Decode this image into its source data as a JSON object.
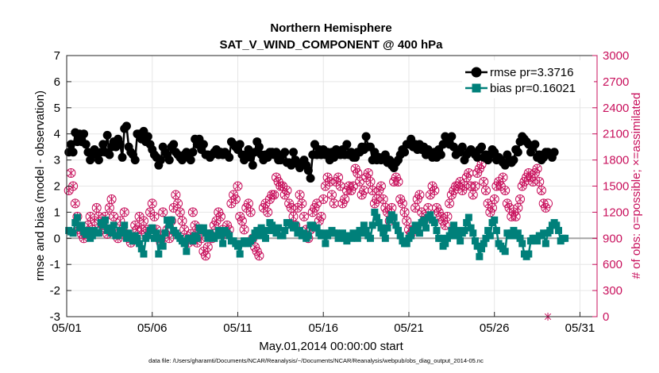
{
  "chart_data": {
    "type": "line",
    "title": "Northern Hemisphere",
    "subtitle": "SAT_V_WIND_COMPONENT @ 400 hPa",
    "xlabel": "May.01,2014 00:00:00 start",
    "ylabel": "rmse and bias (model - observation)",
    "y2label": "# of obs: o=possible; ×=assimilated",
    "footer": "data file: /Users/gharamti/Documents/NCAR/Reanalysis/~/Documents/NCAR/Reanalysis/webpub/obs_diag_output_2014-05.nc",
    "xlim": [
      0,
      31
    ],
    "ylim": [
      -3,
      7
    ],
    "y2lim": [
      0,
      3000
    ],
    "xtick_values": [
      0,
      5,
      10,
      15,
      20,
      25,
      30
    ],
    "xtick_labels": [
      "05/01",
      "05/06",
      "05/11",
      "05/16",
      "05/21",
      "05/26",
      "05/31"
    ],
    "ytick_labels": [
      "-3",
      "-2",
      "-1",
      "0",
      "1",
      "2",
      "3",
      "4",
      "5",
      "6",
      "7"
    ],
    "y2tick_labels": [
      "0",
      "300",
      "600",
      "900",
      "1200",
      "1500",
      "1800",
      "2100",
      "2400",
      "2700",
      "3000"
    ],
    "reference_line": 0,
    "colors": {
      "rmse": "#000000",
      "bias": "#00807a",
      "obs": "#c8105c",
      "zero": "#a6a6a6"
    },
    "x_start": 0.125,
    "x_step": 0.125,
    "series": [
      {
        "name": "rmse pr=3.3716",
        "marker": "circle",
        "values": [
          3.3,
          3.6,
          3.3,
          4.05,
          3.7,
          4.0,
          3.7,
          4.0,
          3.6,
          3.3,
          3.0,
          3.2,
          3.4,
          3.2,
          3.0,
          3.3,
          3.6,
          3.3,
          3.95,
          3.2,
          3.5,
          3.7,
          3.5,
          3.8,
          3.6,
          3.1,
          4.2,
          4.3,
          3.5,
          3.3,
          3.2,
          3.0,
          4.0,
          4.0,
          3.8,
          4.1,
          3.7,
          3.9,
          3.6,
          3.4,
          3.2,
          3.1,
          2.8,
          3.0,
          3.5,
          3.3,
          3.2,
          3.0,
          3.5,
          3.6,
          3.3,
          3.2,
          3.1,
          3.0,
          3.2,
          3.3,
          3.1,
          3.0,
          3.3,
          3.8,
          3.6,
          3.8,
          3.4,
          3.6,
          3.2,
          3.2,
          3.1,
          3.2,
          3.3,
          3.4,
          3.2,
          3.3,
          3.2,
          3.3,
          3.2,
          3.1,
          3.7,
          3.6,
          3.5,
          3.4,
          3.6,
          3.2,
          3.0,
          3.2,
          3.4,
          3.1,
          2.8,
          3.3,
          3.7,
          3.5,
          3.2,
          3.0,
          3.2,
          3.1,
          3.3,
          3.3,
          3.2,
          3.3,
          3.0,
          3.0,
          3.2,
          3.3,
          2.9,
          2.9,
          2.8,
          3.3,
          3.0,
          2.85,
          2.7,
          2.8,
          3.0,
          2.8,
          2.6,
          2.3,
          3.2,
          3.6,
          3.2,
          3.4,
          3.2,
          3.4,
          3.2,
          3.3,
          3.0,
          3.3,
          3.1,
          3.4,
          3.3,
          3.2,
          3.4,
          3.2,
          3.6,
          3.2,
          3.3,
          3.1,
          3.1,
          3.3,
          3.3,
          3.5,
          3.4,
          3.9,
          3.5,
          3.5,
          3.0,
          3.3,
          3.0,
          3.1,
          3.0,
          3.1,
          3.2,
          2.9,
          3.0,
          2.8,
          2.7,
          2.9,
          3.0,
          3.2,
          3.4,
          3.3,
          3.6,
          3.6,
          3.8,
          3.5,
          3.6,
          3.4,
          3.6,
          3.4,
          3.5,
          3.2,
          3.4,
          3.3,
          3.1,
          3.3,
          3.1,
          3.4,
          3.2,
          3.6,
          3.9,
          3.8,
          3.6,
          3.9,
          3.5,
          3.2,
          3.3,
          3.3,
          3.5,
          3.0,
          3.2,
          3.3,
          3.4,
          3.3,
          3.2,
          3.1,
          3.4,
          3.5,
          3.1,
          3.2,
          3.0,
          3.2,
          3.4,
          3.3,
          3.0,
          3.1,
          3.0,
          2.9,
          2.8,
          3.2,
          3.0,
          2.9,
          3.0,
          3.4,
          3.3,
          3.7,
          3.9,
          3.8,
          3.7,
          3.6,
          3.3,
          3.5,
          3.6,
          3.1,
          3.2,
          3.0,
          3.1,
          3.3,
          3.3,
          3.2,
          3.1,
          3.3
        ]
      },
      {
        "name": "bias pr=0.16021",
        "marker": "square",
        "values": [
          0.3,
          0.25,
          0.2,
          0.6,
          0.8,
          0.4,
          0.5,
          0.25,
          0.15,
          0.3,
          0.0,
          0.1,
          0.3,
          0.2,
          0.2,
          0.6,
          0.5,
          0.7,
          0.3,
          0.4,
          0.2,
          0.5,
          0.1,
          0.1,
          0.3,
          0.2,
          0.5,
          0.0,
          0.2,
          0.1,
          -0.1,
          0.1,
          0.0,
          -0.2,
          -0.4,
          -0.6,
          0.0,
          0.1,
          0.3,
          0.4,
          0.0,
          0.2,
          -0.6,
          0.0,
          -0.3,
          0.2,
          0.7,
          0.5,
          0.7,
          0.3,
          0.2,
          0.1,
          0.0,
          -0.1,
          -0.2,
          -0.5,
          0.0,
          0.0,
          -0.1,
          0.1,
          0.0,
          0.4,
          0.3,
          0.4,
          0.2,
          0.0,
          0.2,
          0.1,
          0.0,
          0.1,
          0.3,
          0.1,
          -0.2,
          0.3,
          0.2,
          0.1,
          -0.1,
          -0.1,
          -0.2,
          -0.3,
          -0.6,
          -0.2,
          -0.1,
          -0.1,
          -0.2,
          -0.1,
          0.0,
          0.2,
          0.3,
          0.1,
          0.4,
          0.2,
          0.0,
          0.3,
          0.6,
          0.5,
          0.3,
          0.2,
          0.4,
          0.1,
          0.1,
          0.3,
          0.6,
          0.6,
          0.5,
          0.4,
          0.5,
          0.2,
          0.3,
          0.1,
          0.2,
          0.0,
          0.1,
          0.5,
          0.5,
          0.4,
          0.4,
          0.2,
          0.1,
          0.2,
          -0.2,
          0.1,
          0.2,
          0.3,
          0.2,
          0.2,
          0.0,
          0.1,
          0.2,
          0.0,
          -0.1,
          0.1,
          0.0,
          0.2,
          0.1,
          0.0,
          0.3,
          0.2,
          0.5,
          0.3,
          0.1,
          0.0,
          0.5,
          1.0,
          0.8,
          0.6,
          0.4,
          0.2,
          0.0,
          0.4,
          0.7,
          0.9,
          0.8,
          0.5,
          0.3,
          0.1,
          -0.1,
          -0.2,
          -0.2,
          0.0,
          0.1,
          0.3,
          0.5,
          0.4,
          0.2,
          0.6,
          0.7,
          0.4,
          0.8,
          0.9,
          0.7,
          0.6,
          0.3,
          0.0,
          0.0,
          -0.3,
          -0.2,
          0.0,
          0.1,
          0.3,
          0.5,
          0.1,
          0.3,
          -0.1,
          0.2,
          0.3,
          0.6,
          0.8,
          0.4,
          0.2,
          -0.1,
          -0.3,
          -0.7,
          -0.4,
          -0.2,
          0.0,
          0.3,
          0.1,
          0.6,
          0.7,
          0.3,
          -0.2,
          -0.3,
          -0.4,
          -0.5,
          0.2,
          0.1,
          0.2,
          0.3,
          0.1,
          0.2,
          0.0,
          -0.2,
          -0.6,
          -0.7,
          -0.6,
          -0.1,
          0.0,
          0.0,
          -0.1,
          0.1,
          0.1,
          0.2,
          -0.2,
          0.2,
          0.3,
          0.5,
          0.6,
          0.5,
          0.3,
          -0.1,
          0.0,
          0.0
        ]
      },
      {
        "name": "# of obs possible (o)",
        "axis": "right",
        "marker": "circle-open",
        "values": [
          1450,
          1650,
          1500,
          1300,
          1150,
          1000,
          950,
          900,
          950,
          1050,
          1150,
          1000,
          1100,
          1250,
          1150,
          1000,
          1050,
          1150,
          950,
          1250,
          1350,
          1150,
          950,
          900,
          1100,
          1000,
          1200,
          950,
          900,
          850,
          900,
          1050,
          1000,
          1150,
          1000,
          1100,
          950,
          1000,
          1200,
          1300,
          1150,
          1000,
          900,
          850,
          1200,
          950,
          1000,
          900,
          1100,
          1250,
          1400,
          1300,
          1200,
          1100,
          1000,
          900,
          850,
          950,
          1200,
          1050,
          850,
          1000,
          900,
          750,
          700,
          800,
          950,
          900,
          1050,
          1100,
          1200,
          1150,
          1000,
          950,
          1050,
          1000,
          1300,
          1400,
          1350,
          1500,
          1150,
          1100,
          1000,
          1250,
          1300,
          1200,
          900,
          800,
          750,
          700,
          1000,
          1250,
          1300,
          1200,
          1350,
          1400,
          1400,
          1600,
          1550,
          1500,
          1500,
          1400,
          1450,
          1300,
          1250,
          1150,
          1050,
          1250,
          1400,
          1300,
          1150,
          1000,
          900,
          1000,
          1200,
          1250,
          1300,
          1100,
          1150,
          1350,
          1500,
          1600,
          1550,
          1400,
          1300,
          1550,
          1600,
          1500,
          1300,
          1350,
          1450,
          1500,
          1450,
          1500,
          1700,
          1650,
          1550,
          1400,
          1450,
          1600,
          1650,
          1550,
          1450,
          1300,
          1350,
          1450,
          1500,
          1350,
          1250,
          1200,
          1100,
          1250,
          1550,
          1600,
          1550,
          1350,
          1300,
          1200,
          1100,
          1000,
          950,
          1000,
          1250,
          1350,
          1400,
          1200,
          1100,
          1150,
          1250,
          1400,
          1500,
          1450,
          1250,
          1200,
          1150,
          1100,
          1050,
          1150,
          1300,
          1400,
          1450,
          1500,
          1500,
          1550,
          1450,
          1500,
          1600,
          1650,
          1500,
          1400,
          1500,
          1650,
          1700,
          1750,
          1550,
          1450,
          1300,
          1200,
          1250,
          1350,
          1500,
          1550,
          1500,
          1600,
          1450,
          1300,
          1250,
          1150,
          1200,
          1150,
          1250,
          1350,
          1500,
          1550,
          1600,
          1650,
          1600,
          1550,
          1650,
          1700,
          1550,
          1450,
          1300,
          1250,
          1300
        ]
      },
      {
        "name": "# of obs assimilated (×)",
        "axis": "right",
        "marker": "x",
        "values": [
          1450,
          1650,
          1500,
          1300,
          1150,
          1000,
          950,
          900,
          950,
          1050,
          1150,
          1000,
          1100,
          1250,
          1150,
          1000,
          1050,
          1150,
          950,
          1250,
          1350,
          1150,
          950,
          900,
          1100,
          1000,
          1200,
          950,
          900,
          850,
          900,
          1050,
          1000,
          1150,
          1000,
          1100,
          950,
          1000,
          1200,
          1300,
          1150,
          1000,
          900,
          850,
          1200,
          950,
          1000,
          900,
          1100,
          1250,
          1400,
          1300,
          1200,
          1100,
          1000,
          900,
          850,
          950,
          1200,
          1050,
          850,
          1000,
          900,
          750,
          700,
          800,
          950,
          900,
          1050,
          1100,
          1200,
          1150,
          1000,
          950,
          1050,
          1000,
          1300,
          1400,
          1350,
          1500,
          1150,
          1100,
          1000,
          1250,
          1300,
          1200,
          900,
          800,
          750,
          700,
          1000,
          1250,
          1300,
          1200,
          1350,
          1400,
          1400,
          1600,
          1550,
          1500,
          1500,
          1400,
          1450,
          1300,
          1250,
          1150,
          1050,
          1250,
          1400,
          1300,
          1150,
          1000,
          900,
          1000,
          1200,
          1250,
          1300,
          1100,
          1150,
          1350,
          1500,
          1600,
          1550,
          1400,
          1300,
          1550,
          1600,
          1500,
          1300,
          1350,
          1450,
          1500,
          1450,
          1500,
          1700,
          1650,
          1550,
          1400,
          1450,
          1600,
          1650,
          1550,
          1450,
          1300,
          1350,
          1450,
          1500,
          1350,
          1250,
          1200,
          1100,
          1250,
          1550,
          1600,
          1550,
          1350,
          1300,
          1200,
          1100,
          1000,
          950,
          1000,
          1250,
          1350,
          1400,
          1200,
          1100,
          1150,
          1250,
          1400,
          1500,
          1450,
          1250,
          1200,
          1150,
          1100,
          1050,
          1150,
          1300,
          1400,
          1450,
          1500,
          1500,
          1550,
          1450,
          1500,
          1600,
          1650,
          1500,
          1400,
          1500,
          1650,
          1700,
          1750,
          1550,
          1450,
          1300,
          1200,
          1250,
          1350,
          1500,
          1550,
          1500,
          1600,
          1450,
          1300,
          1250,
          1150,
          1200,
          1150,
          1250,
          1350,
          1500,
          1550,
          1600,
          1650,
          1600,
          1550,
          1650,
          1700,
          1550,
          1450,
          1300,
          1250,
          0
        ]
      }
    ]
  }
}
